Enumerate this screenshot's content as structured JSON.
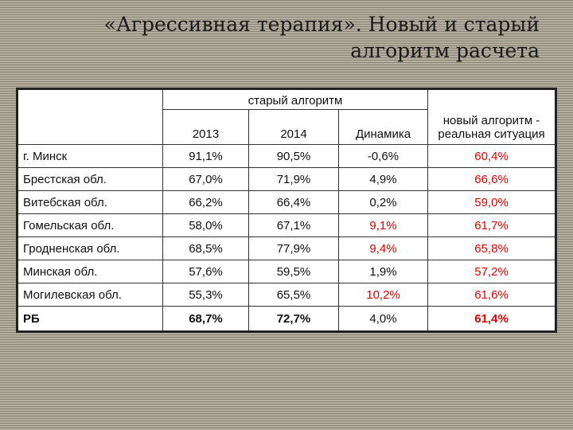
{
  "title": {
    "line1": "«Агрессивная терапия». Новый и старый",
    "line2": "алгоритм расчета"
  },
  "table": {
    "header": {
      "old_algorithm": "старый алгоритм",
      "year1": "2013",
      "year2": "2014",
      "dynamics": "Динамика",
      "new_algorithm": "новый алгоритм - реальная ситуация"
    },
    "rows": [
      {
        "region": "г. Минск",
        "y2013": "91,1%",
        "y2014": "90,5%",
        "dyn": "-0,6%",
        "dyn_red": false,
        "new": "60,4%"
      },
      {
        "region": "Брестская обл.",
        "y2013": "67,0%",
        "y2014": "71,9%",
        "dyn": "4,9%",
        "dyn_red": false,
        "new": "66,6%"
      },
      {
        "region": "Витебская обл.",
        "y2013": "66,2%",
        "y2014": "66,4%",
        "dyn": "0,2%",
        "dyn_red": false,
        "new": "59,0%"
      },
      {
        "region": "Гомельская обл.",
        "y2013": "58,0%",
        "y2014": "67,1%",
        "dyn": "9,1%",
        "dyn_red": true,
        "new": "61,7%"
      },
      {
        "region": "Гродненская обл.",
        "y2013": "68,5%",
        "y2014": "77,9%",
        "dyn": "9,4%",
        "dyn_red": true,
        "new": "65,8%"
      },
      {
        "region": "Минская обл.",
        "y2013": "57,6%",
        "y2014": "59,5%",
        "dyn": "1,9%",
        "dyn_red": false,
        "new": "57,2%"
      },
      {
        "region": "Могилевская обл.",
        "y2013": "55,3%",
        "y2014": "65,5%",
        "dyn": "10,2%",
        "dyn_red": true,
        "new": "61,6%"
      }
    ],
    "total": {
      "region": "РБ",
      "y2013": "68,7%",
      "y2014": "72,7%",
      "dyn": "4,0%",
      "new": "61,4%"
    }
  },
  "colors": {
    "highlight": "#e00000",
    "background": "#9a9486"
  }
}
